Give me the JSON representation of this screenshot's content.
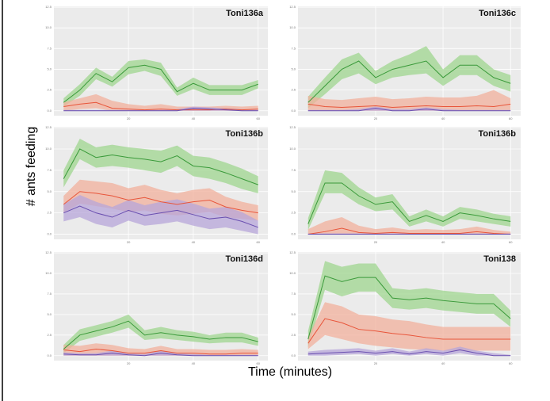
{
  "ylabel": "# ants feeding",
  "xlabel": "Time (minutes)",
  "chart_data": [
    {
      "type": "line",
      "title": "Toni136a",
      "xlim": [
        -3,
        63
      ],
      "ylim": [
        -0.6,
        12.6
      ],
      "xticks": [
        20,
        40,
        60
      ],
      "yticks": [
        {
          "value": 0,
          "label": "0.0"
        },
        2.5,
        {
          "value": 5,
          "label": "5.0"
        },
        7.5,
        {
          "value": 10,
          "label": "10.0"
        },
        12.5
      ],
      "grid": true,
      "x": [
        0,
        5,
        10,
        15,
        20,
        25,
        30,
        35,
        40,
        45,
        50,
        55,
        60
      ],
      "series": [
        {
          "color": "#3a9a3a",
          "band_color": "#9fd68f",
          "values": [
            1,
            2.5,
            4.5,
            3.5,
            5.2,
            5.5,
            5,
            2.3,
            3.3,
            2.5,
            2.5,
            2.5,
            3.2
          ],
          "lower": [
            0.5,
            1.8,
            3.8,
            2.9,
            4.4,
            4.8,
            4.2,
            1.8,
            2.6,
            1.9,
            1.9,
            1.9,
            2.7
          ],
          "upper": [
            1.5,
            3.2,
            5.2,
            4.1,
            6,
            6.2,
            5.8,
            2.8,
            4,
            3.1,
            3.1,
            3.1,
            3.7
          ]
        },
        {
          "color": "#e8553a",
          "band_color": "#f2b09c",
          "values": [
            0.5,
            0.8,
            1,
            0.3,
            0.2,
            0.1,
            0.2,
            0.1,
            0.1,
            0.1,
            0.2,
            0.1,
            0.2
          ],
          "lower": [
            0,
            0.2,
            0.3,
            0,
            0,
            0,
            0,
            0,
            0,
            0,
            0,
            0,
            0
          ],
          "upper": [
            1,
            1.5,
            2,
            1.2,
            0.8,
            0.6,
            0.8,
            0.5,
            0.5,
            0.5,
            0.6,
            0.5,
            0.6
          ]
        },
        {
          "color": "#6a4fb0",
          "band_color": "#b7a6d9",
          "values": [
            0,
            0,
            0,
            0,
            0,
            0,
            0,
            0,
            0.3,
            0.2,
            0.1,
            0,
            0
          ],
          "lower": [
            0,
            0,
            0,
            0,
            0,
            0,
            0,
            0,
            0,
            0,
            0,
            0,
            0
          ],
          "upper": [
            0.1,
            0.1,
            0.1,
            0.1,
            0.1,
            0.1,
            0.1,
            0.2,
            0.5,
            0.4,
            0.3,
            0.2,
            0.1
          ]
        }
      ]
    },
    {
      "type": "line",
      "title": "Toni136c",
      "xlim": [
        -3,
        63
      ],
      "ylim": [
        -0.6,
        12.6
      ],
      "xticks": [
        20,
        40,
        60
      ],
      "yticks": [
        {
          "value": 0,
          "label": "0.0"
        },
        2.5,
        {
          "value": 5,
          "label": "5.0"
        },
        7.5,
        {
          "value": 10,
          "label": "10.0"
        },
        12.5
      ],
      "grid": true,
      "x": [
        0,
        5,
        10,
        15,
        20,
        25,
        30,
        35,
        40,
        45,
        50,
        55,
        60
      ],
      "series": [
        {
          "color": "#3a9a3a",
          "band_color": "#9fd68f",
          "values": [
            1,
            3,
            5,
            6,
            4,
            5,
            5.5,
            6,
            4,
            5.5,
            5.5,
            4,
            3.3
          ],
          "lower": [
            0.3,
            2,
            3.8,
            4.5,
            3.2,
            4,
            4.3,
            4.5,
            3,
            4.3,
            4.3,
            3,
            2.3
          ],
          "upper": [
            1.7,
            4,
            6.2,
            7,
            4.8,
            6,
            6.8,
            7.8,
            5,
            6.7,
            6.7,
            5,
            4.3
          ]
        },
        {
          "color": "#e8553a",
          "band_color": "#f2b09c",
          "values": [
            0.8,
            0.5,
            0.4,
            0.5,
            0.6,
            0.4,
            0.5,
            0.6,
            0.5,
            0.5,
            0.6,
            0.5,
            0.8
          ],
          "lower": [
            0,
            0,
            0,
            0,
            0,
            0,
            0,
            0,
            0,
            0,
            0,
            0,
            0
          ],
          "upper": [
            1.8,
            1.4,
            1.3,
            1.5,
            1.7,
            1.4,
            1.5,
            1.7,
            1.6,
            1.6,
            1.8,
            2.5,
            1.5
          ]
        },
        {
          "color": "#6a4fb0",
          "band_color": "#b7a6d9",
          "values": [
            0,
            0,
            0,
            0,
            0.3,
            0,
            0,
            0.2,
            0,
            0,
            0,
            0,
            0
          ],
          "lower": [
            0,
            0,
            0,
            0,
            0,
            0,
            0,
            0,
            0,
            0,
            0,
            0,
            0
          ],
          "upper": [
            0.1,
            0.1,
            0.1,
            0.2,
            0.5,
            0.2,
            0.2,
            0.4,
            0.2,
            0.1,
            0.1,
            0.1,
            0.1
          ]
        }
      ]
    },
    {
      "type": "line",
      "title": "Toni136b",
      "xlim": [
        -3,
        63
      ],
      "ylim": [
        -0.6,
        12.6
      ],
      "xticks": [
        20,
        40,
        60
      ],
      "yticks": [
        {
          "value": 0,
          "label": "0.0"
        },
        2.5,
        {
          "value": 5,
          "label": "5.0"
        },
        7.5,
        {
          "value": 10,
          "label": "10.0"
        },
        12.5
      ],
      "grid": true,
      "x": [
        0,
        5,
        10,
        15,
        20,
        25,
        30,
        35,
        40,
        45,
        50,
        55,
        60
      ],
      "series": [
        {
          "color": "#3a9a3a",
          "band_color": "#9fd68f",
          "values": [
            6.5,
            10,
            9,
            9.3,
            9,
            8.8,
            8.5,
            9.2,
            8,
            7.8,
            7.2,
            6.5,
            5.8
          ],
          "lower": [
            5.5,
            8.8,
            7.8,
            8,
            7.8,
            7.5,
            7.2,
            8,
            6.8,
            6.5,
            6,
            5.3,
            4.8
          ],
          "upper": [
            7.5,
            11.2,
            10.2,
            10.5,
            10.2,
            10,
            9.8,
            10.4,
            9.2,
            9,
            8.4,
            7.7,
            6.8
          ]
        },
        {
          "color": "#e8553a",
          "band_color": "#f2b09c",
          "values": [
            3.5,
            5,
            4.8,
            4.5,
            4,
            4.3,
            3.8,
            3.5,
            3.8,
            4,
            3.2,
            2.8,
            2.5
          ],
          "lower": [
            2.5,
            3.6,
            3.3,
            3,
            2.6,
            2.8,
            2.4,
            2.2,
            2.4,
            2.6,
            2,
            1.8,
            1.6
          ],
          "upper": [
            4.5,
            6.4,
            6.2,
            6,
            5.4,
            5.8,
            5.2,
            4.8,
            5.2,
            5.4,
            4.4,
            3.8,
            3.4
          ]
        },
        {
          "color": "#6a4fb0",
          "band_color": "#b7a6d9",
          "values": [
            2.5,
            3.3,
            2.5,
            2,
            2.8,
            2.2,
            2.5,
            2.8,
            2.3,
            1.8,
            2,
            1.5,
            0.8
          ],
          "lower": [
            1.5,
            2,
            1.2,
            0.8,
            1.6,
            1,
            1.2,
            1.5,
            1,
            0.6,
            0.8,
            0.4,
            0
          ],
          "upper": [
            3.5,
            4.6,
            3.8,
            3.2,
            4,
            3.4,
            3.8,
            4.1,
            3.6,
            3,
            3.2,
            2.6,
            1.6
          ]
        }
      ]
    },
    {
      "type": "line",
      "title": "Toni136b",
      "xlim": [
        -3,
        63
      ],
      "ylim": [
        -0.6,
        12.6
      ],
      "xticks": [
        20,
        40,
        60
      ],
      "yticks": [
        {
          "value": 0,
          "label": "0.0"
        },
        2.5,
        {
          "value": 5,
          "label": "5.0"
        },
        7.5,
        {
          "value": 10,
          "label": "10.0"
        },
        12.5
      ],
      "grid": true,
      "x": [
        0,
        5,
        10,
        15,
        20,
        25,
        30,
        35,
        40,
        45,
        50,
        55,
        60
      ],
      "series": [
        {
          "color": "#3a9a3a",
          "band_color": "#9fd68f",
          "values": [
            1.2,
            6,
            6,
            4.5,
            3.5,
            3.8,
            1.5,
            2.2,
            1.5,
            2.5,
            2.2,
            1.8,
            1.5
          ],
          "lower": [
            0.5,
            4.8,
            4.8,
            3.5,
            2.7,
            2.9,
            0.9,
            1.5,
            0.9,
            1.8,
            1.5,
            1.2,
            0.9
          ],
          "upper": [
            1.9,
            7.5,
            7.2,
            5.5,
            4.3,
            4.7,
            2.1,
            2.9,
            2.1,
            3.2,
            2.9,
            2.4,
            2.1
          ]
        },
        {
          "color": "#e8553a",
          "band_color": "#f2b09c",
          "values": [
            0,
            0.3,
            0.7,
            0.2,
            0.1,
            0.2,
            0.1,
            0.1,
            0.1,
            0.1,
            0.3,
            0.1,
            0
          ],
          "lower": [
            0,
            0,
            0,
            0,
            0,
            0,
            0,
            0,
            0,
            0,
            0,
            0,
            0
          ],
          "upper": [
            0.6,
            1.5,
            2,
            1,
            0.6,
            0.8,
            0.5,
            0.6,
            0.5,
            0.6,
            0.9,
            0.5,
            0.3
          ]
        },
        {
          "color": "#6a4fb0",
          "band_color": "#b7a6d9",
          "values": [
            0,
            0,
            0,
            0,
            0,
            0,
            0,
            0,
            0,
            0,
            0,
            0,
            0
          ],
          "lower": [
            0,
            0,
            0,
            0,
            0,
            0,
            0,
            0,
            0,
            0,
            0,
            0,
            0
          ],
          "upper": [
            0.1,
            0.1,
            0.1,
            0.1,
            0.1,
            0.1,
            0.1,
            0.1,
            0.1,
            0.1,
            0.1,
            0.1,
            0.1
          ]
        }
      ]
    },
    {
      "type": "line",
      "title": "Toni136d",
      "xlim": [
        -3,
        63
      ],
      "ylim": [
        -0.6,
        12.6
      ],
      "xticks": [
        20,
        40,
        60
      ],
      "yticks": [
        {
          "value": 0,
          "label": "0.0"
        },
        2.5,
        {
          "value": 5,
          "label": "5.0"
        },
        7.5,
        {
          "value": 10,
          "label": "10.0"
        },
        12.5
      ],
      "grid": true,
      "x": [
        0,
        5,
        10,
        15,
        20,
        25,
        30,
        35,
        40,
        45,
        50,
        55,
        60
      ],
      "series": [
        {
          "color": "#3a9a3a",
          "band_color": "#9fd68f",
          "values": [
            0.8,
            2.5,
            3,
            3.5,
            4.2,
            2.5,
            2.8,
            2.5,
            2.3,
            2,
            2.2,
            2.2,
            1.7
          ],
          "lower": [
            0.3,
            1.8,
            2.3,
            2.8,
            3.4,
            1.9,
            2.1,
            1.9,
            1.7,
            1.5,
            1.6,
            1.6,
            1.2
          ],
          "upper": [
            1.3,
            3.2,
            3.7,
            4.2,
            5,
            3.1,
            3.5,
            3.1,
            2.9,
            2.5,
            2.8,
            2.8,
            2.2
          ]
        },
        {
          "color": "#e8553a",
          "band_color": "#f2b09c",
          "values": [
            0.7,
            0.5,
            0.8,
            0.6,
            0.3,
            0.3,
            0.6,
            0.3,
            0.3,
            0.2,
            0.2,
            0.3,
            0.3
          ],
          "lower": [
            0,
            0,
            0,
            0,
            0,
            0,
            0,
            0,
            0,
            0,
            0,
            0,
            0
          ],
          "upper": [
            1.3,
            1.2,
            1.5,
            1.3,
            0.9,
            0.8,
            1.2,
            0.8,
            0.8,
            0.7,
            0.7,
            0.8,
            0.7
          ]
        },
        {
          "color": "#6a4fb0",
          "band_color": "#b7a6d9",
          "values": [
            0.2,
            0.1,
            0.1,
            0.3,
            0.1,
            0,
            0.3,
            0.1,
            0,
            0,
            0,
            0,
            0
          ],
          "lower": [
            0,
            0,
            0,
            0,
            0,
            0,
            0,
            0,
            0,
            0,
            0,
            0,
            0
          ],
          "upper": [
            0.4,
            0.3,
            0.3,
            0.6,
            0.3,
            0.2,
            0.6,
            0.3,
            0.2,
            0.1,
            0.1,
            0.1,
            0.1
          ]
        }
      ]
    },
    {
      "type": "line",
      "title": "Toni138",
      "xlim": [
        -3,
        63
      ],
      "ylim": [
        -0.6,
        12.6
      ],
      "xticks": [
        20,
        40,
        60
      ],
      "yticks": [
        {
          "value": 0,
          "label": "0.0"
        },
        2.5,
        {
          "value": 5,
          "label": "5.0"
        },
        7.5,
        {
          "value": 10,
          "label": "10.0"
        },
        12.5
      ],
      "grid": true,
      "x": [
        0,
        5,
        10,
        15,
        20,
        25,
        30,
        35,
        40,
        45,
        50,
        55,
        60
      ],
      "series": [
        {
          "color": "#3a9a3a",
          "band_color": "#9fd68f",
          "values": [
            2,
            9.7,
            9,
            9.5,
            9.5,
            7,
            6.8,
            7,
            6.7,
            6.5,
            6.3,
            6.3,
            4.5
          ],
          "lower": [
            1,
            8,
            7.2,
            7.8,
            7.8,
            5.8,
            5.6,
            5.8,
            5.5,
            5.3,
            5.1,
            5.1,
            3.5
          ],
          "upper": [
            3,
            11.5,
            10.8,
            11.2,
            11.2,
            8.2,
            8,
            8.2,
            7.9,
            7.7,
            7.5,
            7.5,
            5.5
          ]
        },
        {
          "color": "#e8553a",
          "band_color": "#f2b09c",
          "values": [
            1.5,
            4.5,
            4,
            3.2,
            3,
            2.7,
            2.5,
            2.2,
            2,
            2,
            2,
            2,
            2
          ],
          "lower": [
            0.8,
            2.5,
            2,
            1.5,
            1.2,
            1,
            0.8,
            0.7,
            0.6,
            0.6,
            0.6,
            0.6,
            0.6
          ],
          "upper": [
            2.2,
            6.5,
            6,
            5,
            4.8,
            4.4,
            4.2,
            3.8,
            3.5,
            3.5,
            3.5,
            3.5,
            3.5
          ]
        },
        {
          "color": "#6a4fb0",
          "band_color": "#b7a6d9",
          "values": [
            0.2,
            0.3,
            0.4,
            0.5,
            0.3,
            0.5,
            0.2,
            0.5,
            0.3,
            0.7,
            0.3,
            0,
            0
          ],
          "lower": [
            0,
            0,
            0.1,
            0.2,
            0,
            0.2,
            0,
            0.2,
            0,
            0.3,
            0,
            0,
            0
          ],
          "upper": [
            0.5,
            0.7,
            0.8,
            0.9,
            0.6,
            0.9,
            0.5,
            0.9,
            0.6,
            1.1,
            0.6,
            0.3,
            0.1
          ]
        }
      ]
    }
  ]
}
